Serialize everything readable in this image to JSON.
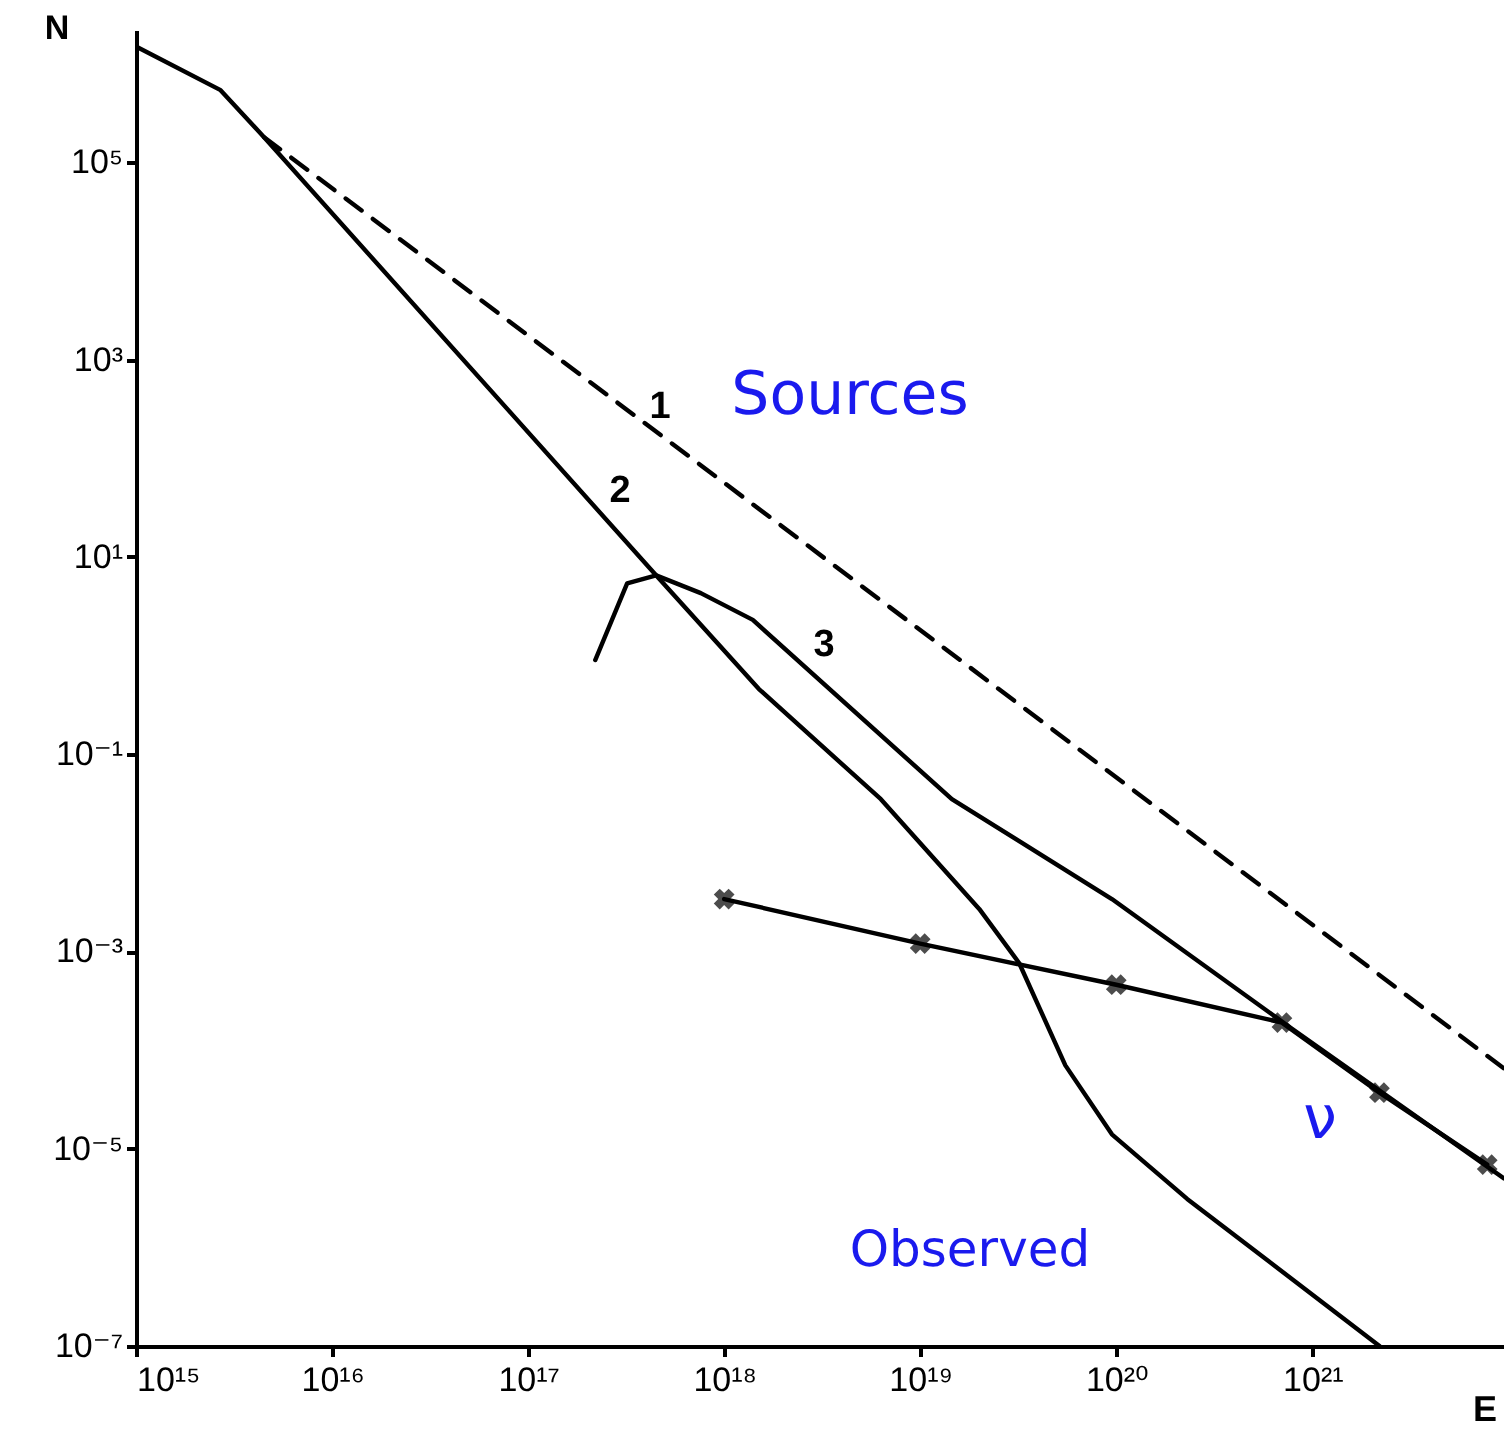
{
  "chart_data": {
    "type": "line",
    "xlabel": "E",
    "ylabel": "N",
    "log": "xy",
    "grid": false,
    "xlim": [
      1000000000000000.0,
      9.5e+21
    ],
    "ylim": [
      1e-07,
      2200000.0
    ],
    "xticks": [
      {
        "value": 1000000000000000.0,
        "label": "10¹⁵"
      },
      {
        "value": 1e+16,
        "label": "10¹⁶"
      },
      {
        "value": 1e+17,
        "label": "10¹⁷"
      },
      {
        "value": 1e+18,
        "label": "10¹⁸"
      },
      {
        "value": 1e+19,
        "label": "10¹⁹"
      },
      {
        "value": 1e+20,
        "label": "10²⁰"
      },
      {
        "value": 1e+21,
        "label": "10²¹"
      }
    ],
    "yticks": [
      {
        "value": 1e-07,
        "label": "10⁻⁷"
      },
      {
        "value": 1e-05,
        "label": "10⁻⁵"
      },
      {
        "value": 0.001,
        "label": "10⁻³"
      },
      {
        "value": 0.1,
        "label": "10⁻¹"
      },
      {
        "value": 10,
        "label": "10¹"
      },
      {
        "value": 1000,
        "label": "10³"
      },
      {
        "value": 100000.0,
        "label": "10⁵"
      }
    ],
    "series": [
      {
        "name": "1",
        "color": "#000000",
        "line_style": "dashed",
        "marker": "none",
        "x": [
          4500000000000000.0,
          9.5e+21
        ],
        "values": [
          180000.0,
          6.5e-05
        ]
      },
      {
        "name": "2",
        "color": "#000000",
        "line_style": "solid",
        "marker": "none",
        "x": [
          1000000000000000.0,
          2700000000000000.0,
          4500000000000000.0,
          4.7e+17,
          1.5e+18,
          6.3e+18,
          2e+19,
          3.2e+19,
          5.5e+19,
          9.5e+19,
          2.3e+20,
          2.2e+21
        ],
        "values": [
          1500000.0,
          540000.0,
          180000.0,
          5.9,
          0.46,
          0.035,
          0.0027,
          0.00076,
          7e-05,
          1.4e-05,
          3.1e-06,
          1e-07
        ]
      },
      {
        "name": "3",
        "color": "#000000",
        "line_style": "solid",
        "marker": "none",
        "x": [
          2.2e+17,
          3.2e+17,
          4.5e+17,
          7.6e+17,
          1.4e+18,
          1.45e+19,
          9.5e+19,
          7.4e+20,
          9.5e+21
        ],
        "values": [
          0.9,
          5.4,
          6.5,
          4.3,
          2.3,
          0.035,
          0.0034,
          0.00018,
          5e-06
        ]
      },
      {
        "color": "#000000",
        "line_style": "solid",
        "marker": "cross",
        "x": [
          1e+18,
          1e+19,
          1e+20,
          7e+20,
          2.2e+21,
          7.8e+21
        ],
        "values": [
          0.0034,
          0.0012,
          0.00046,
          0.00019,
          3.7e-05,
          6.9e-06
        ]
      }
    ],
    "annotations": [
      "Sources",
      "ν",
      "Observed"
    ]
  }
}
